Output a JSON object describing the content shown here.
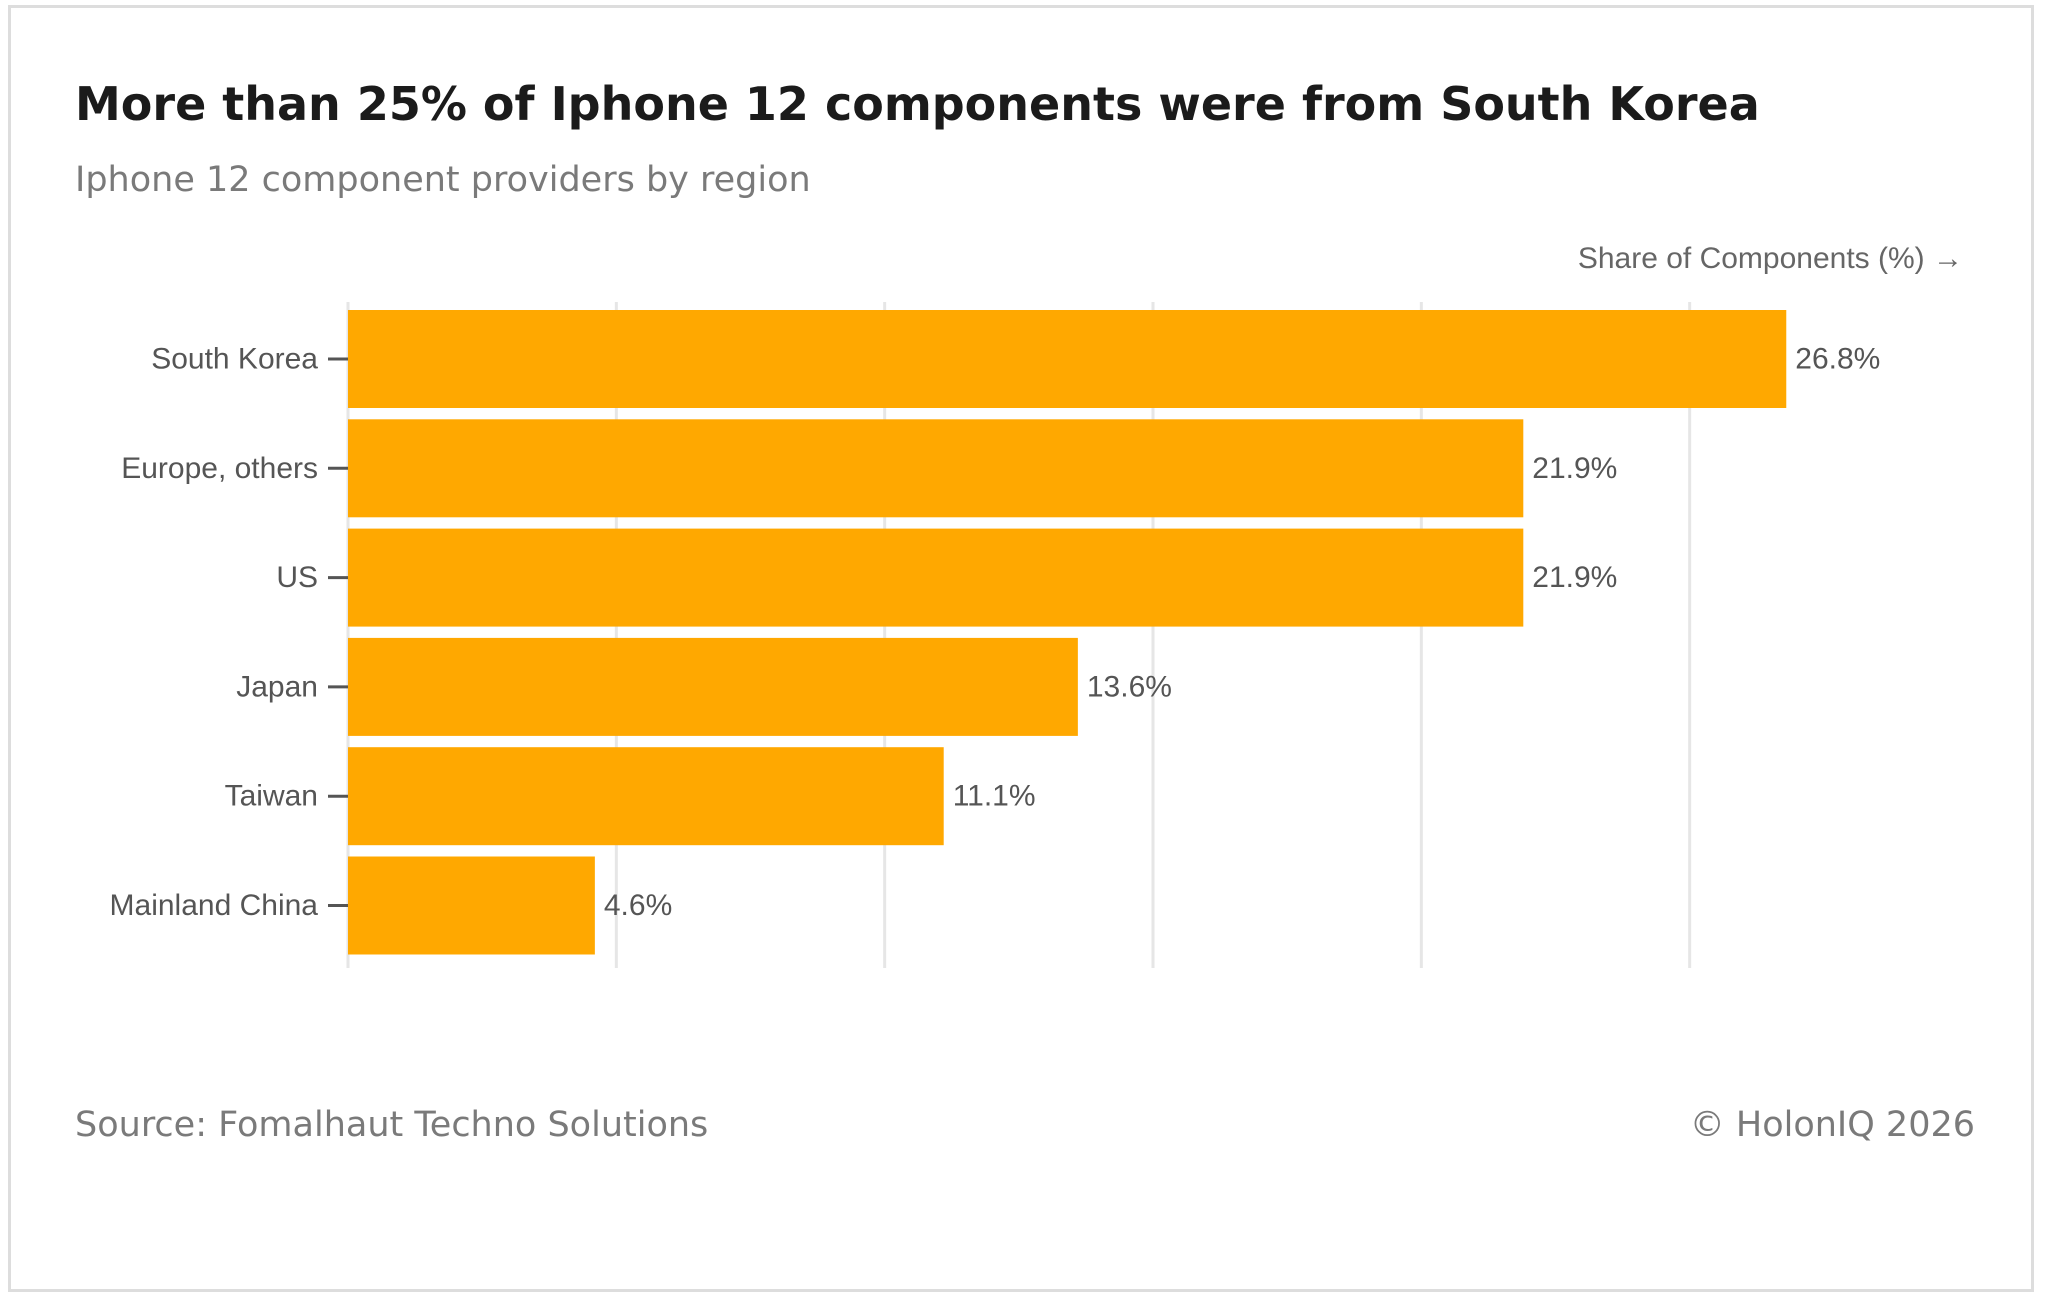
{
  "header": {
    "title": "More than 25% of Iphone 12 components were from South Korea",
    "subtitle": "Iphone 12 component providers by region"
  },
  "footer": {
    "source": "Source: Fomalhaut Techno Solutions",
    "copyright": "© HolonIQ 2026"
  },
  "colors": {
    "bar": "#FFA800",
    "grid": "#e6e6e6"
  },
  "chart_data": {
    "type": "bar",
    "orientation": "horizontal",
    "categories": [
      "South Korea",
      "Europe, others",
      "US",
      "Japan",
      "Taiwan",
      "Mainland China"
    ],
    "values": [
      26.8,
      21.9,
      21.9,
      13.6,
      11.1,
      4.6
    ],
    "value_labels": [
      "26.8%",
      "21.9%",
      "21.9%",
      "13.6%",
      "11.1%",
      "4.6%"
    ],
    "xlabel": "Share of Components (%) →",
    "xlim": [
      0,
      30
    ],
    "grid": true,
    "legend": "none"
  }
}
